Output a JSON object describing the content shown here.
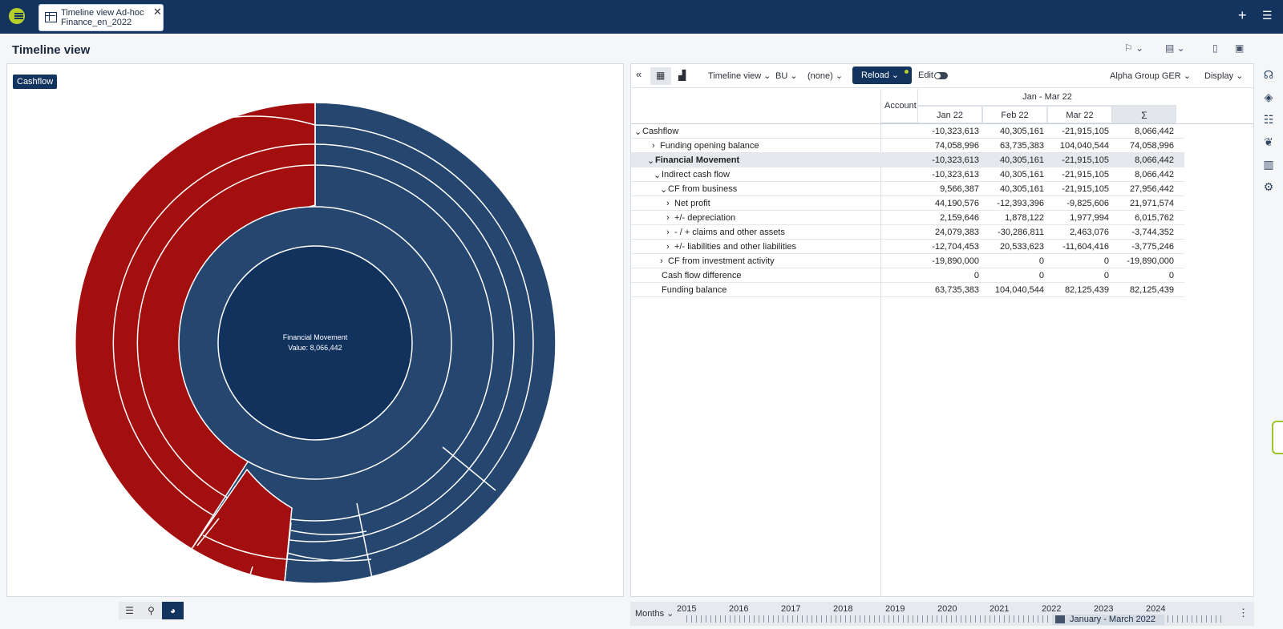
{
  "app": {
    "tab_line1": "Timeline view Ad-hoc",
    "tab_line2": "Finance_en_2022",
    "page_title": "Timeline view"
  },
  "left": {
    "badge": "Cashflow",
    "center_title": "Financial Movement",
    "center_value": "Value: 8,066,442"
  },
  "toolbar": {
    "view_select": "Timeline view",
    "bu_select": "BU",
    "none_select": "(none)",
    "reload": "Reload",
    "edit": "Edit",
    "company": "Alpha Group GER",
    "display": "Display"
  },
  "table": {
    "account_header": "Account",
    "period_header": "Jan - Mar 22",
    "columns": [
      "Jan 22",
      "Feb 22",
      "Mar 22",
      "Σ"
    ],
    "rows": [
      {
        "label": "Cashflow",
        "values": [
          "-10,323,613",
          "40,305,161",
          "-21,915,105",
          "8,066,442"
        ]
      },
      {
        "label": "Funding opening balance",
        "values": [
          "74,058,996",
          "63,735,383",
          "104,040,544",
          "74,058,996"
        ]
      },
      {
        "label": "Financial Movement",
        "values": [
          "-10,323,613",
          "40,305,161",
          "-21,915,105",
          "8,066,442"
        ]
      },
      {
        "label": "Indirect cash flow",
        "values": [
          "-10,323,613",
          "40,305,161",
          "-21,915,105",
          "8,066,442"
        ]
      },
      {
        "label": "CF from business",
        "values": [
          "9,566,387",
          "40,305,161",
          "-21,915,105",
          "27,956,442"
        ]
      },
      {
        "label": "Net profit",
        "values": [
          "44,190,576",
          "-12,393,396",
          "-9,825,606",
          "21,971,574"
        ]
      },
      {
        "label": "+/- depreciation",
        "values": [
          "2,159,646",
          "1,878,122",
          "1,977,994",
          "6,015,762"
        ]
      },
      {
        "label": "- / + claims and other assets",
        "values": [
          "24,079,383",
          "-30,286,811",
          "2,463,076",
          "-3,744,352"
        ]
      },
      {
        "label": "+/- liabilities and other liabilities",
        "values": [
          "-12,704,453",
          "20,533,623",
          "-11,604,416",
          "-3,775,246"
        ]
      },
      {
        "label": "CF from investment activity",
        "values": [
          "-19,890,000",
          "0",
          "0",
          "-19,890,000"
        ]
      },
      {
        "label": "Cash flow difference",
        "values": [
          "0",
          "0",
          "0",
          "0"
        ]
      },
      {
        "label": "Funding balance",
        "values": [
          "63,735,383",
          "104,040,544",
          "82,125,439",
          "82,125,439"
        ]
      }
    ]
  },
  "timeline": {
    "unit": "Months",
    "years": [
      "2015",
      "2016",
      "2017",
      "2018",
      "2019",
      "2020",
      "2021",
      "2022",
      "2023",
      "2024"
    ],
    "range": "January - March 2022"
  },
  "colors": {
    "navy": "#13345f",
    "blue": "#25466f",
    "red": "#a30e0e"
  }
}
